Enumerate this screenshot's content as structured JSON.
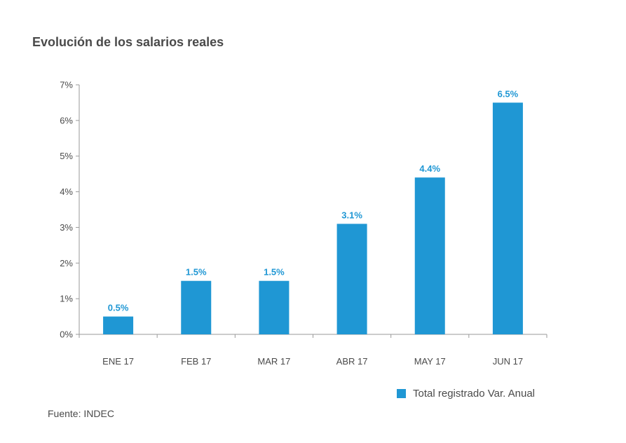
{
  "title": "Evolución de los salarios reales",
  "source": "Fuente: INDEC",
  "colors": {
    "bar": "#1f97d4",
    "label": "#1f97d4",
    "axis": "#9a9a9a",
    "text": "#4a4a4a"
  },
  "chart_data": {
    "type": "bar",
    "title": "Evolución de los salarios reales",
    "categories": [
      "ENE 17",
      "FEB 17",
      "MAR 17",
      "ABR 17",
      "MAY 17",
      "JUN 17"
    ],
    "series": [
      {
        "name": "Total registrado Var. Anual",
        "values": [
          0.5,
          1.5,
          1.5,
          3.1,
          4.4,
          6.5
        ],
        "labels": [
          "0.5%",
          "1.5%",
          "1.5%",
          "3.1%",
          "4.4%",
          "6.5%"
        ]
      }
    ],
    "ylim": [
      0,
      7
    ],
    "yticks": [
      "0%",
      "1%",
      "2%",
      "3%",
      "4%",
      "5%",
      "6%",
      "7%"
    ],
    "grid": false,
    "legend_position": "bottom-right"
  }
}
